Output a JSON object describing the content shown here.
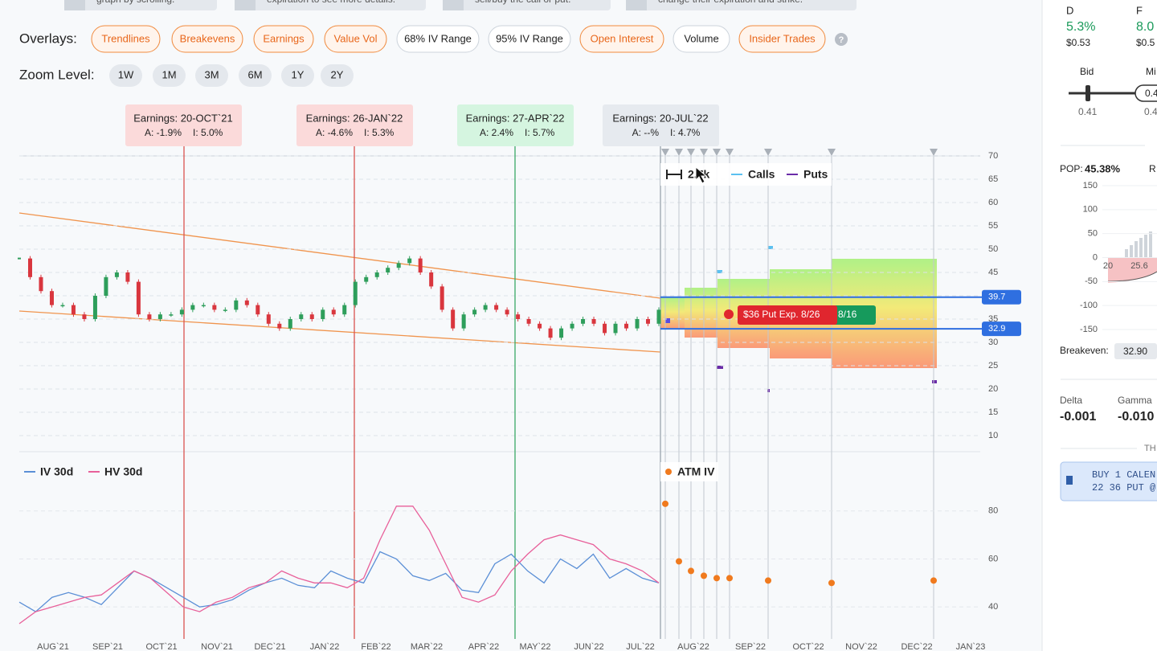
{
  "hints": [
    "graph by scrolling.",
    "expiration to see more details.",
    "sell/buy the call or put.",
    "change their expiration and strike."
  ],
  "overlays": {
    "label": "Overlays:",
    "help": "?",
    "buttons": [
      {
        "label": "Trendlines",
        "active": true
      },
      {
        "label": "Breakevens",
        "active": true
      },
      {
        "label": "Earnings",
        "active": true
      },
      {
        "label": "Value Vol",
        "active": true
      },
      {
        "label": "68% IV Range",
        "active": false
      },
      {
        "label": "95% IV Range",
        "active": false
      },
      {
        "label": "Open Interest",
        "active": true
      },
      {
        "label": "Volume",
        "active": false
      },
      {
        "label": "Insider Trades",
        "active": true
      }
    ]
  },
  "zoom": {
    "label": "Zoom Level:",
    "buttons": [
      "1W",
      "1M",
      "3M",
      "6M",
      "1Y",
      "2Y"
    ]
  },
  "earnings": [
    {
      "title": "Earnings: 20-OCT`21",
      "actual": "A: -1.9%",
      "implied": "I: 5.0%",
      "color": "#fbdada",
      "line": "#d9534f"
    },
    {
      "title": "Earnings: 26-JAN`22",
      "actual": "A: -4.6%",
      "implied": "I: 5.3%",
      "color": "#fbdada",
      "line": "#d9534f"
    },
    {
      "title": "Earnings: 27-APR`22",
      "actual": "A: 2.4%",
      "implied": "I: 5.7%",
      "color": "#d5f5e0",
      "line": "#3aa866"
    },
    {
      "title": "Earnings: 20-JUL`22",
      "actual": "A: --%",
      "implied": "I: 4.7%",
      "color": "#e6eaef",
      "line": "#9aa3ad"
    }
  ],
  "price_chart": {
    "type": "candlestick",
    "closes": [
      48,
      44,
      41,
      38,
      38,
      36,
      35,
      40,
      44,
      45,
      43,
      36,
      35,
      36,
      36,
      37,
      38,
      38,
      37,
      37,
      39,
      38,
      36,
      34,
      33,
      35,
      36,
      35,
      37,
      36,
      38,
      43,
      44,
      45,
      46,
      47,
      48,
      45,
      42,
      37,
      33,
      36,
      37,
      38,
      37,
      36,
      35,
      34,
      33,
      31,
      33,
      34,
      35,
      34,
      32,
      34,
      33,
      35,
      34,
      37
    ],
    "ylim": [
      10,
      70
    ],
    "yticks": [
      10,
      15,
      20,
      25,
      30,
      35,
      40,
      45,
      50,
      55,
      60,
      65,
      70
    ],
    "levels": [
      39.7,
      32.9
    ],
    "volume": "2.7k",
    "calls": "Calls",
    "puts": "Puts",
    "tooltip": [
      "$36 Put Exp. 8/26",
      "8/16"
    ]
  },
  "iv_chart": {
    "type": "line",
    "ylim": [
      30,
      92
    ],
    "yticks": [
      40,
      60,
      80
    ],
    "series": [
      {
        "name": "IV 30d",
        "color": "#5b8fd6",
        "values": [
          42,
          38,
          44,
          46,
          44,
          41,
          48,
          55,
          52,
          48,
          44,
          40,
          41,
          43,
          47,
          50,
          52,
          49,
          48,
          55,
          52,
          50,
          63,
          60,
          53,
          51,
          54,
          47,
          46,
          58,
          62,
          55,
          50,
          60,
          56,
          62,
          52,
          56,
          52,
          50
        ]
      },
      {
        "name": "HV 30d",
        "color": "#e8609a",
        "values": [
          33,
          38,
          40,
          42,
          44,
          45,
          50,
          55,
          52,
          46,
          40,
          38,
          42,
          44,
          48,
          50,
          55,
          52,
          50,
          50,
          48,
          52,
          68,
          82,
          82,
          72,
          58,
          44,
          42,
          45,
          55,
          62,
          68,
          70,
          68,
          66,
          60,
          58,
          55,
          50
        ]
      }
    ],
    "atm_iv": {
      "name": "ATM IV",
      "color": "#f07a1e",
      "values": [
        83,
        59,
        55,
        53,
        52,
        52,
        51,
        50,
        51
      ]
    }
  },
  "x_axis": [
    "AUG`21",
    "SEP`21",
    "OCT`21",
    "NOV`21",
    "DEC`21",
    "JAN`22",
    "FEB`22",
    "MAR`22",
    "APR`22",
    "MAY`22",
    "JUN`22",
    "JUL`22",
    "AUG`22",
    "SEP`22",
    "OCT`22",
    "NOV`22",
    "DEC`22",
    "JAN`23"
  ],
  "side_panel": {
    "cols": [
      {
        "label": "D",
        "pct": "5.3%",
        "price": "$0.53"
      },
      {
        "label": "F",
        "pct": "8.0",
        "price": "$0.5"
      }
    ],
    "bid": "Bid",
    "bid_value": "0.41",
    "mid": "Mi",
    "mid_box": "0.4",
    "mid_value": "0.4",
    "pop_label": "POP:",
    "pop": "45.38%",
    "ret": "R",
    "pnl_ylim": [
      -150,
      150
    ],
    "pnl_yticks": [
      150,
      100,
      50,
      0,
      -50,
      -100,
      -150
    ],
    "pnl_x": [
      "20",
      "25.6"
    ],
    "breakeven_label": "Breakeven:",
    "breakeven": "32.90",
    "greeks": [
      {
        "label": "Delta",
        "value": "-0.001"
      },
      {
        "label": "Gamma",
        "value": "-0.010"
      }
    ],
    "section": "TH",
    "order": [
      "BUY 1 CALEN",
      "22 36 PUT @"
    ]
  }
}
